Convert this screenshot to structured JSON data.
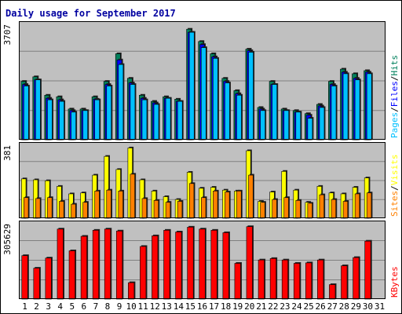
{
  "chart_data": {
    "type": "bar",
    "title": "Daily usage for September 2017",
    "categories": [
      "1",
      "2",
      "3",
      "4",
      "5",
      "6",
      "7",
      "8",
      "9",
      "10",
      "11",
      "12",
      "13",
      "14",
      "15",
      "16",
      "17",
      "18",
      "19",
      "20",
      "21",
      "22",
      "23",
      "24",
      "25",
      "26",
      "27",
      "28",
      "29",
      "30",
      "31"
    ],
    "weekend_days": [
      2,
      3,
      9,
      16,
      17,
      23,
      24,
      30,
      31
    ],
    "panels": [
      {
        "name": "hits-files-pages",
        "ymax": 3707,
        "ymax_label": "3707",
        "legend": [
          {
            "label": "Hits",
            "color": "#00805c"
          },
          {
            "label": "/",
            "color": "#000000"
          },
          {
            "label": "Files",
            "color": "#0000ff"
          },
          {
            "label": "/",
            "color": "#000000"
          },
          {
            "label": "Pages",
            "color": "#00c0ff"
          }
        ],
        "series": [
          {
            "name": "Hits",
            "color": "#00805c",
            "values": [
              1900,
              2050,
              1450,
              1400,
              1000,
              1000,
              1400,
              1900,
              2800,
              2000,
              1450,
              1250,
              1400,
              1320,
              3600,
              3200,
              2800,
              2000,
              1600,
              2950,
              1050,
              1900,
              1000,
              950,
              850,
              1150,
              1900,
              2300,
              2150,
              2250,
              null
            ]
          },
          {
            "name": "Files",
            "color": "#0000ff",
            "values": [
              1800,
              1950,
              1350,
              1300,
              950,
              950,
              1320,
              1800,
              2600,
              1850,
              1350,
              1200,
              1350,
              1250,
              3500,
              3100,
              2700,
              1900,
              1500,
              2900,
              1000,
              1800,
              950,
              900,
              800,
              1100,
              1800,
              2200,
              2000,
              2200,
              null
            ]
          },
          {
            "name": "Pages",
            "color": "#00c0ff",
            "values": [
              1750,
              1950,
              1300,
              1250,
              900,
              950,
              1300,
              1750,
              2450,
              1800,
              1300,
              1150,
              1350,
              1250,
              3500,
              3000,
              2650,
              1850,
              1450,
              2850,
              950,
              1800,
              950,
              900,
              700,
              1050,
              1750,
              2150,
              1950,
              2150,
              null
            ]
          }
        ]
      },
      {
        "name": "visits-sites",
        "ymax": 381,
        "ymax_label": "381",
        "legend": [
          {
            "label": "Visits",
            "color": "#ffff00"
          },
          {
            "label": "/",
            "color": "#000000"
          },
          {
            "label": "Sites",
            "color": "#ff8000"
          }
        ],
        "series": [
          {
            "name": "Visits",
            "color": "#ffff00",
            "values": [
              210,
              205,
              200,
              170,
              130,
              135,
              230,
              330,
              260,
              375,
              205,
              145,
              115,
              100,
              245,
              160,
              165,
              150,
              145,
              360,
              90,
              140,
              250,
              150,
              85,
              170,
              135,
              130,
              165,
              215,
              null
            ]
          },
          {
            "name": "Sites",
            "color": "#ff8000",
            "values": [
              110,
              105,
              110,
              90,
              75,
              85,
              145,
              150,
              145,
              235,
              105,
              95,
              85,
              90,
              185,
              110,
              145,
              140,
              145,
              230,
              85,
              100,
              110,
              95,
              80,
              125,
              100,
              90,
              130,
              135,
              null
            ]
          }
        ]
      },
      {
        "name": "kbytes",
        "ymax": 305629,
        "ymax_label": "305629",
        "legend": [
          {
            "label": "KBytes",
            "color": "#ff0000"
          }
        ],
        "series": [
          {
            "name": "KBytes",
            "color": "#ff0000",
            "values": [
              180000,
              128000,
              170000,
              290000,
              200000,
              260000,
              285000,
              290000,
              282000,
              68000,
              218000,
              262000,
              285000,
              278000,
              298000,
              290000,
              285000,
              275000,
              148000,
              300000,
              162000,
              168000,
              162000,
              148000,
              150000,
              162000,
              60000,
              138000,
              172000,
              240000,
              null
            ]
          }
        ]
      }
    ],
    "grid": true
  }
}
